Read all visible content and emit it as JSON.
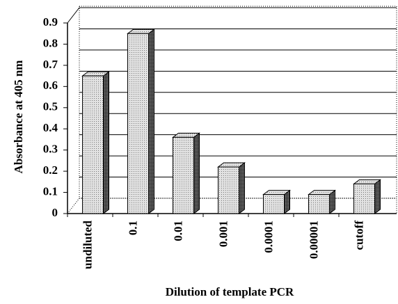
{
  "chart_data": {
    "type": "bar3d",
    "y_label": "Absorbance at 405 nm",
    "x_label": "Dilution of template PCR",
    "categories": [
      "undiluted",
      "0.1",
      "0.01",
      "0.001",
      "0.0001",
      "0.00001",
      "cutoff"
    ],
    "values": [
      0.65,
      0.85,
      0.36,
      0.22,
      0.09,
      0.09,
      0.14
    ],
    "color": "#d4d4d4",
    "ylim": [
      0,
      0.9
    ],
    "yticks": [
      0,
      0.1,
      0.2,
      0.3,
      0.4,
      0.5,
      0.6,
      0.7,
      0.8,
      0.9
    ],
    "grid": true
  }
}
